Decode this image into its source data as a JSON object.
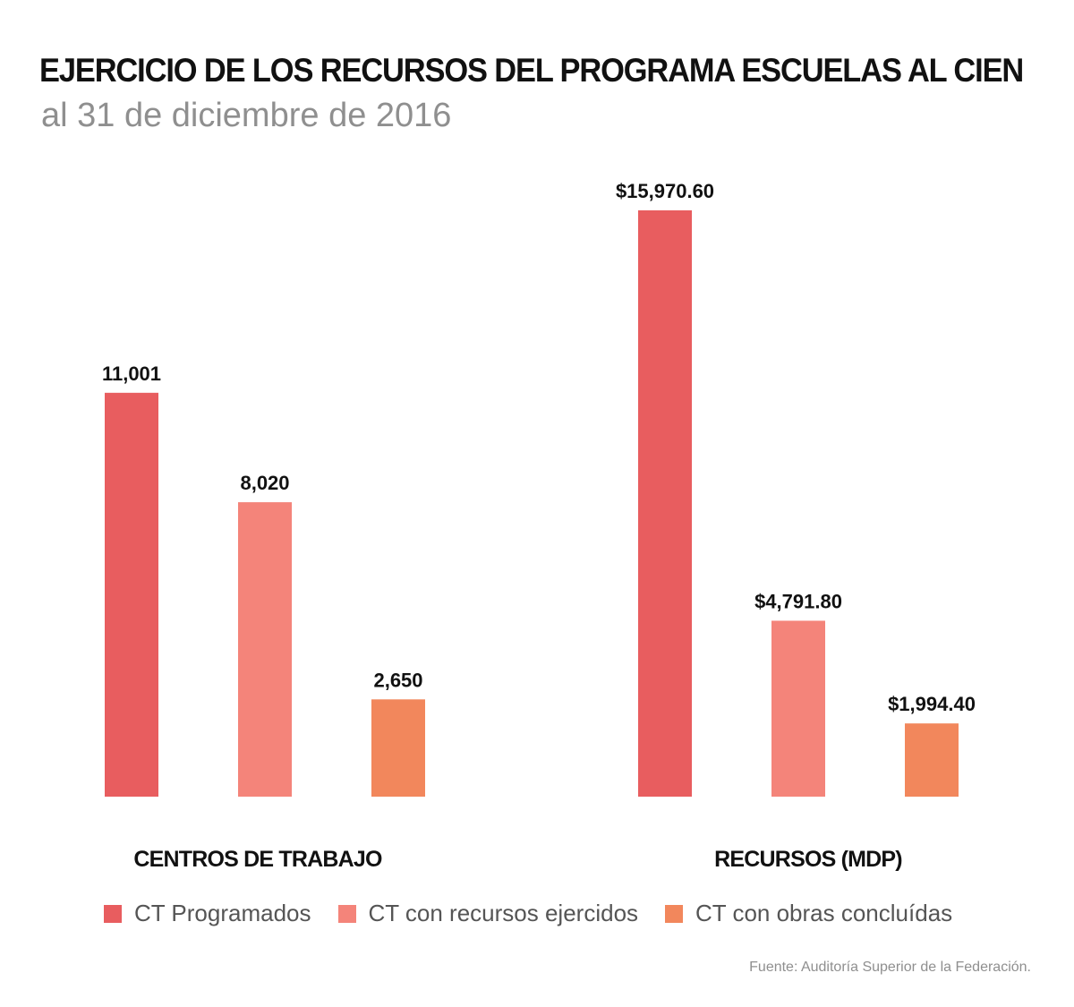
{
  "title": "EJERCICIO DE LOS RECURSOS DEL PROGRAMA ESCUELAS AL CIEN",
  "subtitle": "al 31 de diciembre de 2016",
  "source": "Fuente: Auditoría Superior de la Federación.",
  "colors": {
    "programados": "#e85d5f",
    "ejercidos": "#f4847a",
    "concluidas": "#f2875c"
  },
  "chart_data": [
    {
      "type": "bar",
      "title": "CENTROS DE TRABAJO",
      "categories": [
        "CT Programados",
        "CT con recursos ejercidos",
        "CT con obras concluídas"
      ],
      "values": [
        11001,
        8020,
        2650
      ],
      "value_labels": [
        "11,001",
        "8,020",
        "2,650"
      ],
      "ylim": [
        0,
        15970.6
      ]
    },
    {
      "type": "bar",
      "title": "RECURSOS (MDP)",
      "categories": [
        "CT Programados",
        "CT con recursos ejercidos",
        "CT con obras concluídas"
      ],
      "values": [
        15970.6,
        4791.8,
        1994.4
      ],
      "value_labels": [
        "$15,970.60",
        "$4,791.80",
        "$1,994.40"
      ],
      "ylim": [
        0,
        15970.6
      ]
    }
  ],
  "legend": [
    {
      "label": "CT Programados",
      "color": "#e85d5f"
    },
    {
      "label": "CT con recursos ejercidos",
      "color": "#f4847a"
    },
    {
      "label": "CT con obras concluídas",
      "color": "#f2875c"
    }
  ]
}
